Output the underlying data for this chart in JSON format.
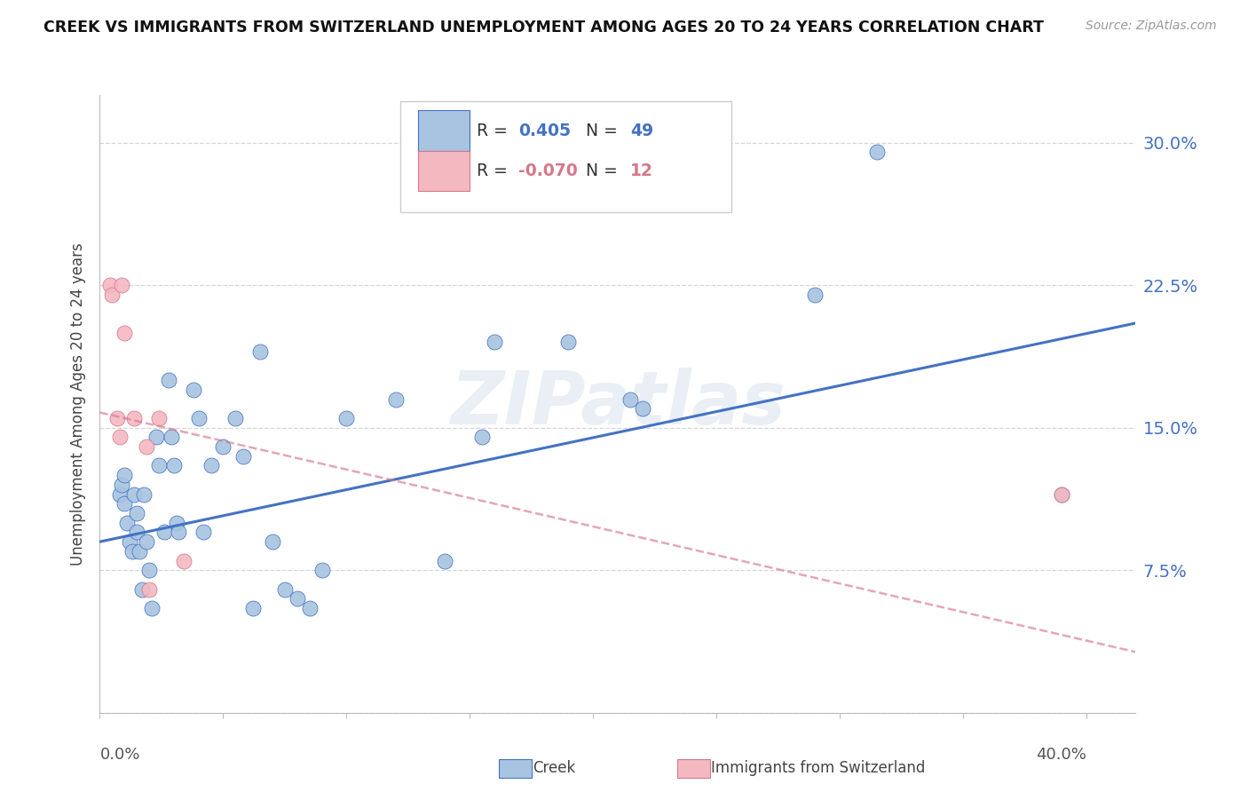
{
  "title": "CREEK VS IMMIGRANTS FROM SWITZERLAND UNEMPLOYMENT AMONG AGES 20 TO 24 YEARS CORRELATION CHART",
  "source": "Source: ZipAtlas.com",
  "ylabel": "Unemployment Among Ages 20 to 24 years",
  "ytick_labels": [
    "",
    "7.5%",
    "15.0%",
    "22.5%",
    "30.0%"
  ],
  "ytick_values": [
    0,
    0.075,
    0.15,
    0.225,
    0.3
  ],
  "xlim": [
    0.0,
    0.42
  ],
  "ylim": [
    0.0,
    0.325
  ],
  "watermark": "ZIPatlas",
  "creek_R": "0.405",
  "creek_N": "49",
  "swiss_R": "-0.070",
  "swiss_N": "12",
  "creek_color": "#a8c4e0",
  "creek_line_color": "#4472c4",
  "swiss_color": "#f4b8c1",
  "swiss_line_color": "#d4788a",
  "creek_scatter_x": [
    0.008,
    0.009,
    0.01,
    0.01,
    0.011,
    0.012,
    0.013,
    0.014,
    0.015,
    0.015,
    0.016,
    0.017,
    0.018,
    0.019,
    0.02,
    0.021,
    0.023,
    0.024,
    0.026,
    0.028,
    0.029,
    0.03,
    0.031,
    0.032,
    0.038,
    0.04,
    0.042,
    0.045,
    0.05,
    0.055,
    0.058,
    0.062,
    0.065,
    0.07,
    0.075,
    0.08,
    0.085,
    0.09,
    0.1,
    0.12,
    0.14,
    0.155,
    0.16,
    0.19,
    0.215,
    0.22,
    0.29,
    0.315,
    0.39
  ],
  "creek_scatter_y": [
    0.115,
    0.12,
    0.125,
    0.11,
    0.1,
    0.09,
    0.085,
    0.115,
    0.105,
    0.095,
    0.085,
    0.065,
    0.115,
    0.09,
    0.075,
    0.055,
    0.145,
    0.13,
    0.095,
    0.175,
    0.145,
    0.13,
    0.1,
    0.095,
    0.17,
    0.155,
    0.095,
    0.13,
    0.14,
    0.155,
    0.135,
    0.055,
    0.19,
    0.09,
    0.065,
    0.06,
    0.055,
    0.075,
    0.155,
    0.165,
    0.08,
    0.145,
    0.195,
    0.195,
    0.165,
    0.16,
    0.22,
    0.295,
    0.115
  ],
  "swiss_scatter_x": [
    0.004,
    0.005,
    0.007,
    0.008,
    0.009,
    0.01,
    0.014,
    0.019,
    0.02,
    0.024,
    0.034,
    0.39
  ],
  "swiss_scatter_y": [
    0.225,
    0.22,
    0.155,
    0.145,
    0.225,
    0.2,
    0.155,
    0.14,
    0.065,
    0.155,
    0.08,
    0.115
  ],
  "creek_trendline_x": [
    0.0,
    0.42
  ],
  "creek_trendline_y": [
    0.09,
    0.205
  ],
  "swiss_trendline_x": [
    0.0,
    0.42
  ],
  "swiss_trendline_y": [
    0.158,
    0.032
  ]
}
